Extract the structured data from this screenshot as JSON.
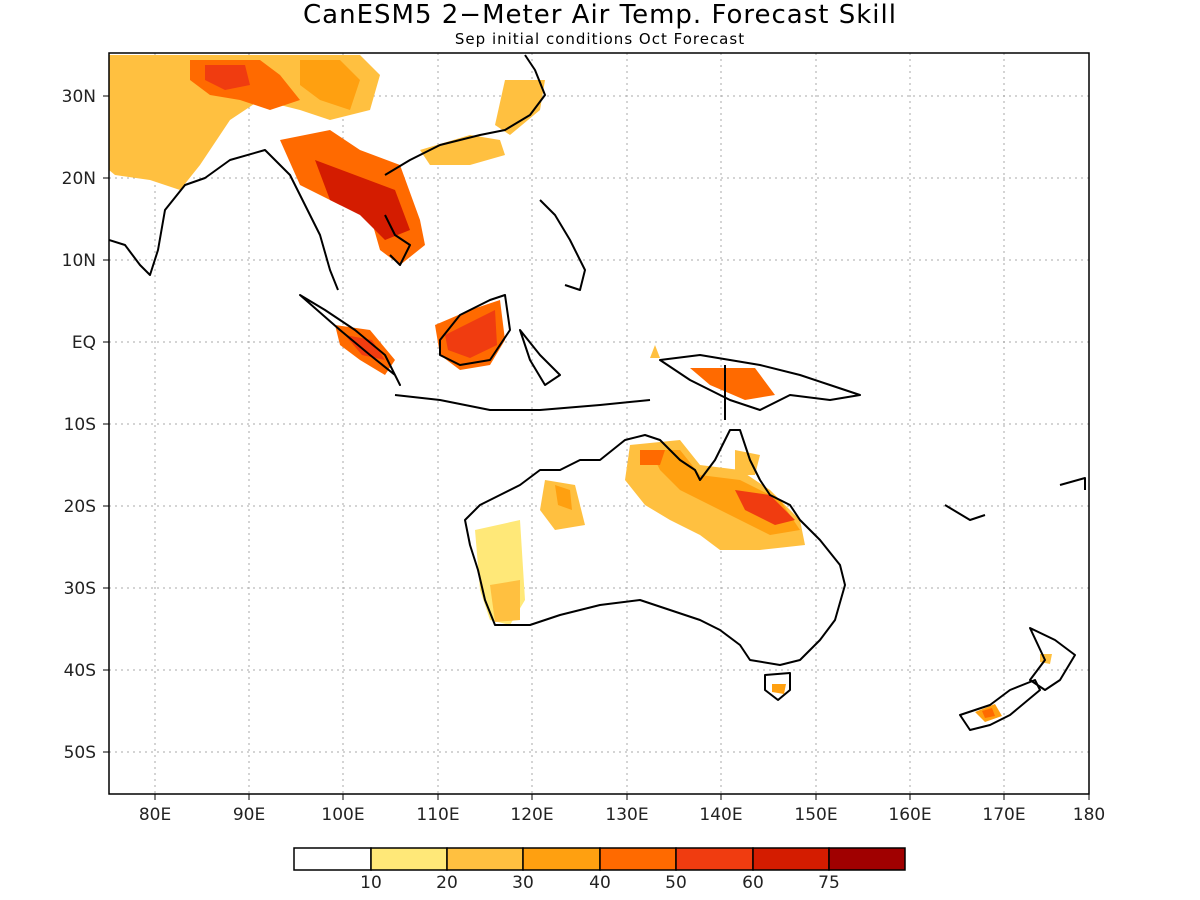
{
  "title": "CanESM5 2−Meter Air Temp. Forecast Skill",
  "subtitle": "Sep initial conditions  Oct Forecast",
  "axes": {
    "lon_ticks": [
      "80E",
      "90E",
      "100E",
      "110E",
      "120E",
      "130E",
      "140E",
      "150E",
      "160E",
      "170E",
      "180"
    ],
    "lat_ticks": [
      "30N",
      "20N",
      "10N",
      "EQ",
      "10S",
      "20S",
      "30S",
      "40S",
      "50S"
    ]
  },
  "colorbar": {
    "colors": [
      "#ffffff",
      "#ffe878",
      "#ffc040",
      "#ffa010",
      "#ff6a00",
      "#f03c10",
      "#d41c00",
      "#a00000"
    ],
    "labels": [
      "10",
      "20",
      "30",
      "40",
      "50",
      "60",
      "75"
    ]
  }
}
